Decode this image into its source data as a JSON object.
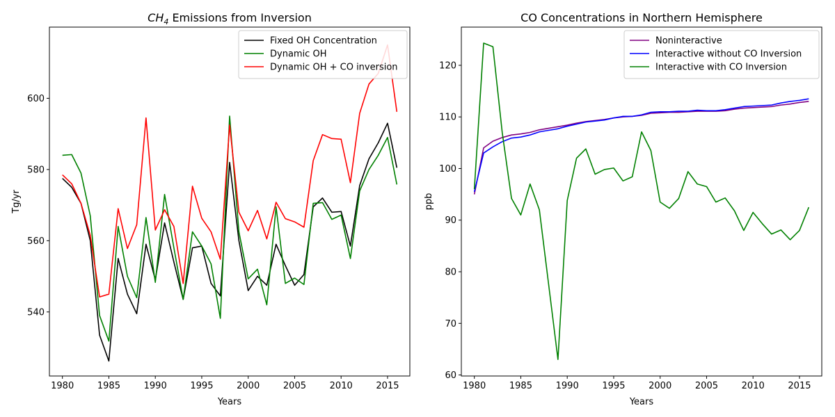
{
  "chart_data": [
    {
      "type": "line",
      "title_prefix": "CH",
      "title_sub": "4",
      "title_suffix": " Emissions from Inversion",
      "xlabel": "Years",
      "ylabel": "Tg/yr",
      "xlim": [
        1978.6,
        2017.4
      ],
      "ylim": [
        522,
        620
      ],
      "xticks": [
        1980,
        1985,
        1990,
        1995,
        2000,
        2005,
        2010,
        2015
      ],
      "yticks": [
        540,
        560,
        580,
        600
      ],
      "legend_position": "upper-right",
      "grid": false,
      "x": [
        1980,
        1981,
        1982,
        1983,
        1984,
        1985,
        1986,
        1987,
        1988,
        1989,
        1990,
        1991,
        1992,
        1993,
        1994,
        1995,
        1996,
        1997,
        1998,
        1999,
        2000,
        2001,
        2002,
        2003,
        2004,
        2005,
        2006,
        2007,
        2008,
        2009,
        2010,
        2011,
        2012,
        2013,
        2014,
        2015,
        2016
      ],
      "series": [
        {
          "name": "Fixed OH Concentration",
          "color": "#000000",
          "values": [
            577.5,
            575,
            570.5,
            560,
            533.5,
            526.2,
            555,
            545,
            539.5,
            559,
            549,
            565,
            554,
            543.5,
            558,
            558.5,
            548,
            544.5,
            582,
            560,
            546,
            550,
            547.5,
            559,
            553,
            547.5,
            550.5,
            569.5,
            572,
            568,
            568.2,
            558.5,
            575.5,
            583,
            587.5,
            593,
            580.5
          ]
        },
        {
          "name": "Dynamic OH",
          "color": "#008000",
          "values": [
            584,
            584.2,
            579,
            567,
            539,
            531.8,
            564,
            550,
            544,
            566.5,
            548.3,
            573,
            558,
            543.5,
            562.5,
            558.5,
            553.5,
            538.2,
            595,
            562.5,
            549.3,
            552,
            542,
            569.5,
            548,
            549.5,
            547.7,
            570.5,
            570.7,
            566,
            567.2,
            555,
            574,
            580,
            584,
            589,
            575.8
          ]
        },
        {
          "name": "Dynamic OH + CO inversion",
          "color": "#ff0000",
          "values": [
            578.5,
            576,
            570.5,
            561.5,
            544.2,
            545,
            569,
            557.8,
            564.5,
            594.5,
            563,
            568.7,
            564,
            548,
            575.3,
            566.3,
            562.5,
            554.8,
            592.5,
            568,
            562.8,
            568.5,
            560.5,
            570.8,
            566.2,
            565.3,
            563.8,
            582.5,
            589.8,
            588.7,
            588.5,
            576.3,
            595.8,
            604,
            607,
            615,
            596.2
          ]
        }
      ]
    },
    {
      "type": "line",
      "title": "CO Concentrations in Northern Hemisphere",
      "xlabel": "Years",
      "ylabel": "ppb",
      "xlim": [
        1978.6,
        2017.4
      ],
      "ylim": [
        59.8,
        127.4
      ],
      "xticks": [
        1980,
        1985,
        1990,
        1995,
        2000,
        2005,
        2010,
        2015
      ],
      "yticks": [
        60,
        70,
        80,
        90,
        100,
        110,
        120
      ],
      "legend_position": "upper-right",
      "grid": false,
      "x": [
        1980,
        1981,
        1982,
        1983,
        1984,
        1985,
        1986,
        1987,
        1988,
        1989,
        1990,
        1991,
        1992,
        1993,
        1994,
        1995,
        1996,
        1997,
        1998,
        1999,
        2000,
        2001,
        2002,
        2003,
        2004,
        2005,
        2006,
        2007,
        2008,
        2009,
        2010,
        2011,
        2012,
        2013,
        2014,
        2015,
        2016
      ],
      "series": [
        {
          "name": "Noninteractive",
          "color": "#800080",
          "values": [
            95,
            104,
            105.3,
            106,
            106.5,
            106.7,
            107,
            107.5,
            107.8,
            108.1,
            108.4,
            108.8,
            109.1,
            109.3,
            109.5,
            109.8,
            110,
            110.1,
            110.3,
            110.7,
            110.8,
            110.9,
            110.9,
            111,
            111.1,
            111.1,
            111.1,
            111.2,
            111.5,
            111.7,
            111.8,
            111.9,
            112,
            112.3,
            112.5,
            112.8,
            113
          ]
        },
        {
          "name": "Interactive without CO Inversion",
          "color": "#0000ff",
          "values": [
            95.5,
            103,
            104.2,
            105.2,
            105.9,
            106.1,
            106.5,
            107.1,
            107.4,
            107.7,
            108.2,
            108.6,
            109,
            109.2,
            109.4,
            109.8,
            110.1,
            110.1,
            110.4,
            110.9,
            111,
            111,
            111.1,
            111.1,
            111.3,
            111.2,
            111.2,
            111.4,
            111.7,
            112,
            112.1,
            112.2,
            112.3,
            112.7,
            113,
            113.2,
            113.5
          ]
        },
        {
          "name": "Interactive with CO Inversion",
          "color": "#008000",
          "values": [
            96,
            124.3,
            123.6,
            107,
            94.2,
            91,
            97,
            92,
            77.5,
            63,
            93.8,
            102,
            103.8,
            98.9,
            99.8,
            100.1,
            97.6,
            98.4,
            107.1,
            103.5,
            93.5,
            92.3,
            94.2,
            99.4,
            97,
            96.5,
            93.5,
            94.3,
            91.8,
            88,
            91.5,
            89.3,
            87.3,
            88.1,
            86.2,
            88,
            92.5
          ]
        }
      ]
    }
  ]
}
